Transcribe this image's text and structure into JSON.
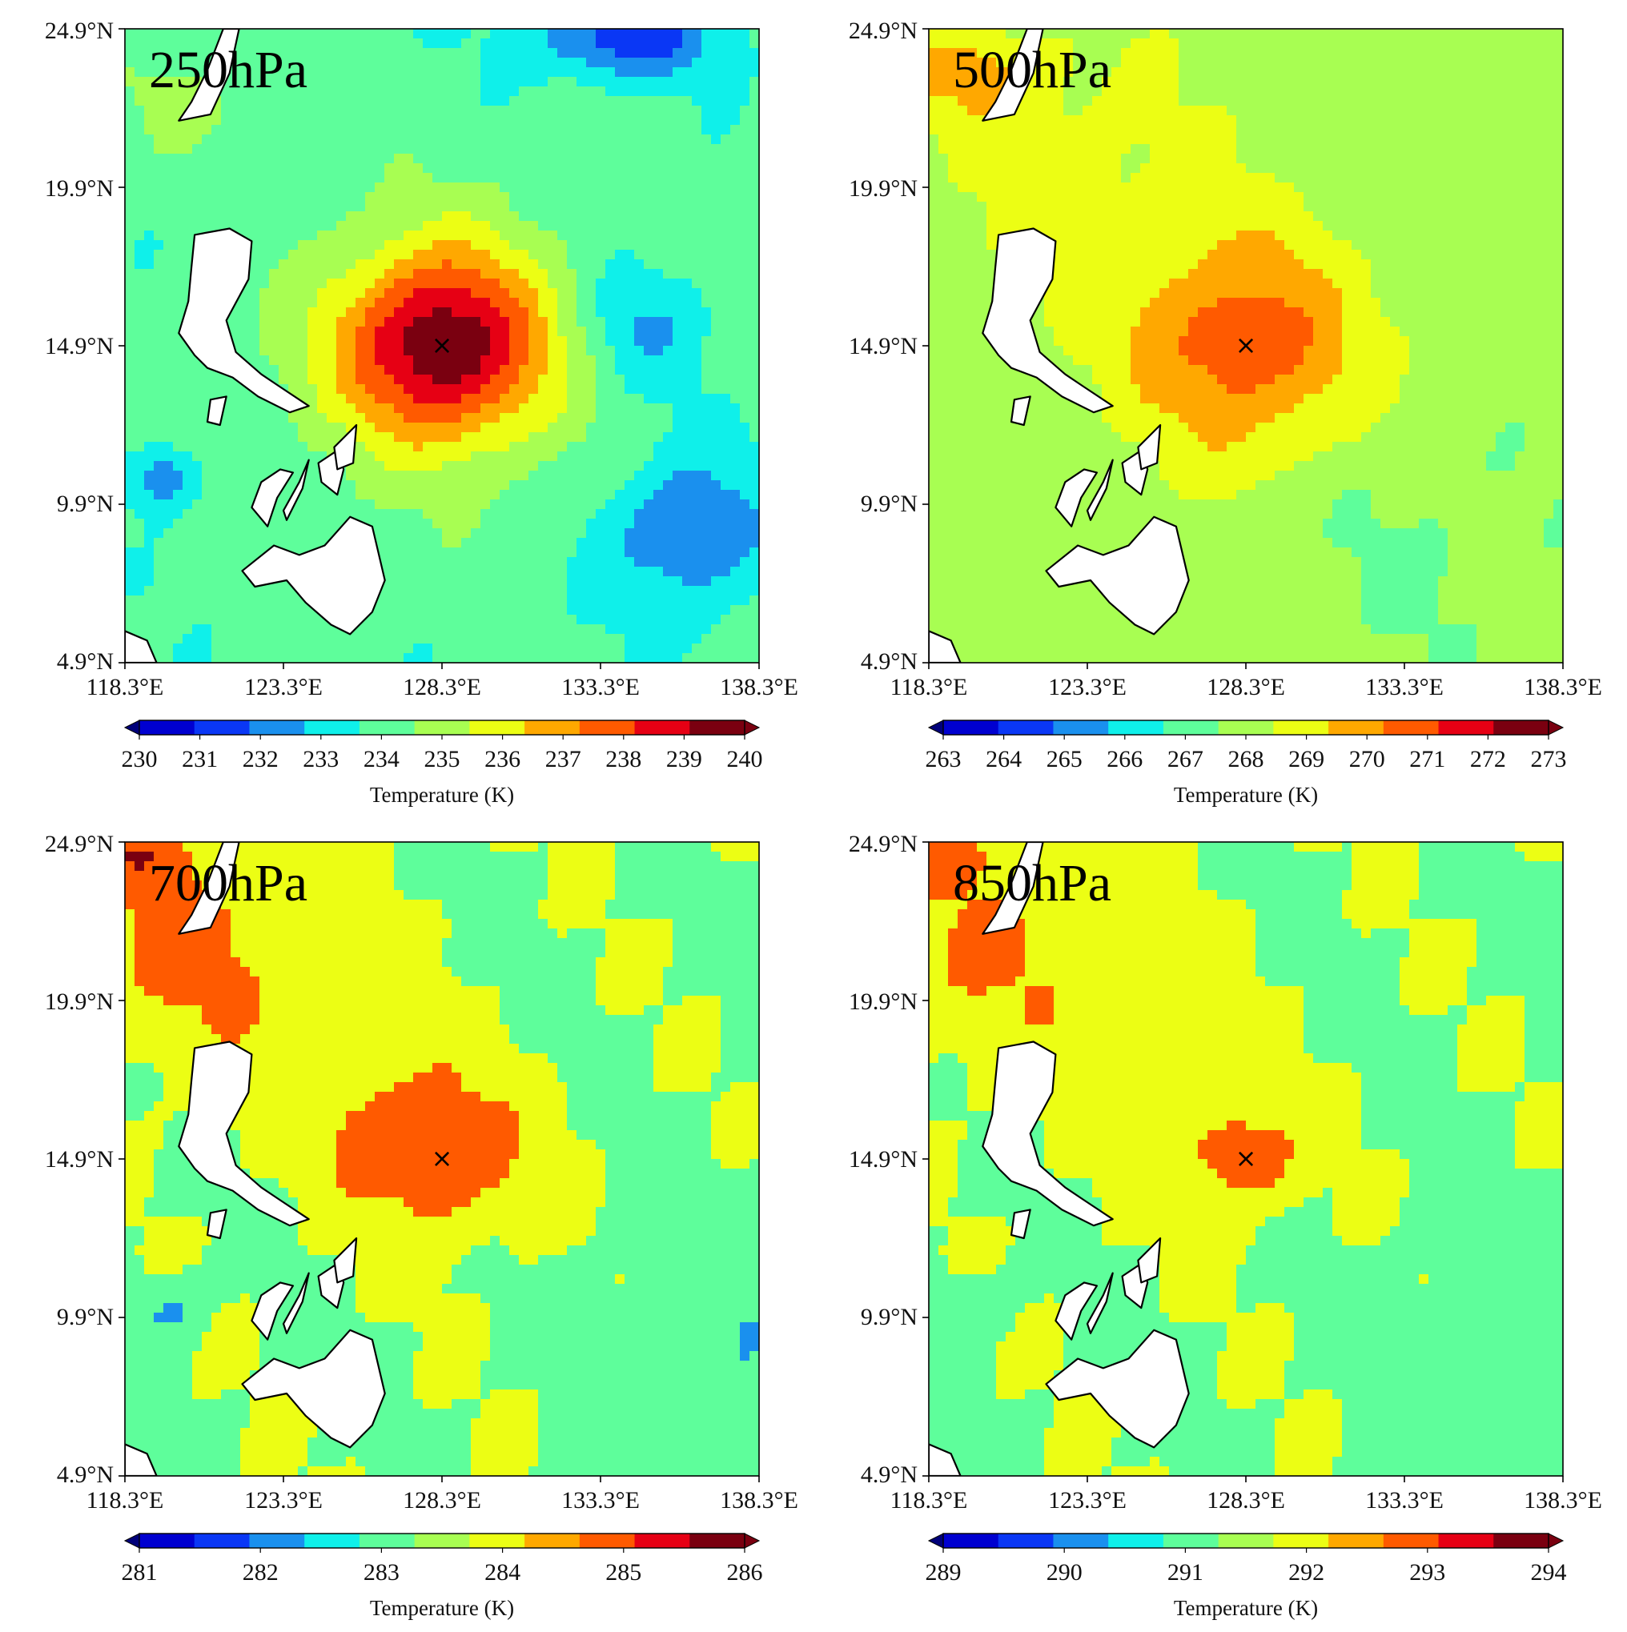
{
  "chart_data": [
    {
      "type": "heatmap",
      "title": "250hPa",
      "xticks": [
        118.3,
        123.3,
        128.3,
        133.3,
        138.3
      ],
      "yticks": [
        4.9,
        9.9,
        14.9,
        19.9,
        24.9
      ],
      "xtick_labels": [
        "118.3°E",
        "123.3°E",
        "128.3°E",
        "133.3°E",
        "138.3°E"
      ],
      "ytick_labels": [
        "4.9°N",
        "9.9°N",
        "14.9°N",
        "19.9°N",
        "24.9°N"
      ],
      "xlim": [
        118.3,
        138.3
      ],
      "ylim": [
        4.9,
        24.9
      ],
      "levels": [
        230,
        231,
        232,
        233,
        234,
        235,
        236,
        237,
        238,
        239,
        240
      ],
      "colorbar_ticks": [
        "230",
        "231",
        "232",
        "233",
        "234",
        "235",
        "236",
        "237",
        "238",
        "239",
        "240"
      ],
      "colorbar_label": "Temperature (K)",
      "center": {
        "lon": 128.3,
        "lat": 14.9,
        "marker": "×"
      },
      "background_value": 234.3,
      "anomalies": [
        {
          "lon": 128.3,
          "lat": 14.9,
          "amp": 5.6,
          "rx": 3.2,
          "ry": 3.0
        },
        {
          "lon": 128.3,
          "lat": 14.9,
          "amp": 1.1,
          "rx": 5.5,
          "ry": 5.0
        },
        {
          "lon": 136.0,
          "lat": 9.0,
          "amp": -2.3,
          "rx": 2.5,
          "ry": 2.5
        },
        {
          "lon": 134.5,
          "lat": 15.5,
          "amp": -1.6,
          "rx": 2.0,
          "ry": 2.0
        },
        {
          "lon": 134.0,
          "lat": 24.6,
          "amp": -2.8,
          "rx": 3.0,
          "ry": 1.3
        },
        {
          "lon": 119.5,
          "lat": 10.7,
          "amp": -2.2,
          "rx": 1.0,
          "ry": 1.0
        },
        {
          "lon": 120.0,
          "lat": 22.5,
          "amp": 0.8,
          "rx": 2.5,
          "ry": 1.8
        }
      ]
    },
    {
      "type": "heatmap",
      "title": "500hPa",
      "xticks": [
        118.3,
        123.3,
        128.3,
        133.3,
        138.3
      ],
      "yticks": [
        4.9,
        9.9,
        14.9,
        19.9,
        24.9
      ],
      "xtick_labels": [
        "118.3°E",
        "123.3°E",
        "128.3°E",
        "133.3°E",
        "138.3°E"
      ],
      "ytick_labels": [
        "4.9°N",
        "9.9°N",
        "14.9°N",
        "19.9°N",
        "24.9°N"
      ],
      "xlim": [
        118.3,
        138.3
      ],
      "ylim": [
        4.9,
        24.9
      ],
      "levels": [
        263,
        264,
        265,
        266,
        267,
        268,
        269,
        270,
        271,
        272,
        273
      ],
      "colorbar_ticks": [
        "263",
        "264",
        "265",
        "266",
        "267",
        "268",
        "269",
        "270",
        "271",
        "272",
        "273"
      ],
      "colorbar_label": "Temperature (K)",
      "center": {
        "lon": 128.3,
        "lat": 14.9,
        "marker": "×"
      },
      "background_value": 268.5,
      "anomalies": [
        {
          "lon": 128.3,
          "lat": 14.9,
          "amp": 3.1,
          "rx": 3.6,
          "ry": 3.4
        },
        {
          "lon": 123.0,
          "lat": 20.0,
          "amp": 0.9,
          "rx": 4.5,
          "ry": 4.5
        },
        {
          "lon": 119.5,
          "lat": 23.5,
          "amp": 1.6,
          "rx": 2.5,
          "ry": 1.5
        },
        {
          "lon": 134.0,
          "lat": 8.5,
          "amp": -0.6,
          "rx": 4.0,
          "ry": 4.0
        }
      ]
    },
    {
      "type": "heatmap",
      "title": "700hPa",
      "xticks": [
        118.3,
        123.3,
        128.3,
        133.3,
        138.3
      ],
      "yticks": [
        4.9,
        9.9,
        14.9,
        19.9,
        24.9
      ],
      "xtick_labels": [
        "118.3°E",
        "123.3°E",
        "128.3°E",
        "133.3°E",
        "138.3°E"
      ],
      "ytick_labels": [
        "4.9°N",
        "9.9°N",
        "14.9°N",
        "19.9°N",
        "24.9°N"
      ],
      "xlim": [
        118.3,
        138.3
      ],
      "ylim": [
        4.9,
        24.9
      ],
      "levels": [
        281,
        282,
        283,
        284,
        285,
        286
      ],
      "colorbar_ticks": [
        "281",
        "282",
        "283",
        "284",
        "285",
        "286"
      ],
      "colorbar_label": "Temperature (K)",
      "center": {
        "lon": 128.3,
        "lat": 14.9,
        "marker": "×"
      },
      "background_value": 283.9,
      "anomalies": [
        {
          "lon": 128.3,
          "lat": 14.9,
          "amp": 1.7,
          "rx": 2.8,
          "ry": 2.6
        },
        {
          "lon": 120.5,
          "lat": 21.5,
          "amp": 1.3,
          "rx": 4.5,
          "ry": 3.8
        },
        {
          "lon": 119.0,
          "lat": 24.5,
          "amp": 1.3,
          "rx": 1.5,
          "ry": 1.0
        },
        {
          "lon": 126.0,
          "lat": 16.5,
          "amp": 0.8,
          "rx": 3.0,
          "ry": 2.5
        },
        {
          "lon": 136.5,
          "lat": 9.0,
          "amp": -0.8,
          "rx": 3.0,
          "ry": 4.0
        },
        {
          "lon": 119.7,
          "lat": 10.2,
          "amp": -1.2,
          "rx": 1.0,
          "ry": 1.0
        }
      ]
    },
    {
      "type": "heatmap",
      "title": "850hPa",
      "xticks": [
        118.3,
        123.3,
        128.3,
        133.3,
        138.3
      ],
      "yticks": [
        4.9,
        9.9,
        14.9,
        19.9,
        24.9
      ],
      "xtick_labels": [
        "118.3°E",
        "123.3°E",
        "128.3°E",
        "133.3°E",
        "138.3°E"
      ],
      "ytick_labels": [
        "4.9°N",
        "9.9°N",
        "14.9°N",
        "19.9°N",
        "24.9°N"
      ],
      "xlim": [
        118.3,
        138.3
      ],
      "ylim": [
        4.9,
        24.9
      ],
      "levels": [
        289,
        290,
        291,
        292,
        293,
        294
      ],
      "colorbar_ticks": [
        "289",
        "290",
        "291",
        "292",
        "293",
        "294"
      ],
      "colorbar_label": "Temperature (K)",
      "center": {
        "lon": 128.3,
        "lat": 14.9,
        "marker": "×"
      },
      "background_value": 291.9,
      "anomalies": [
        {
          "lon": 128.3,
          "lat": 14.9,
          "amp": 1.5,
          "rx": 1.6,
          "ry": 1.5
        },
        {
          "lon": 120.5,
          "lat": 21.5,
          "amp": 1.1,
          "rx": 4.8,
          "ry": 3.8
        },
        {
          "lon": 119.0,
          "lat": 24.5,
          "amp": 1.0,
          "rx": 1.5,
          "ry": 1.0
        },
        {
          "lon": 126.5,
          "lat": 16.0,
          "amp": 0.6,
          "rx": 3.5,
          "ry": 3.0
        },
        {
          "lon": 136.0,
          "lat": 8.5,
          "amp": -0.7,
          "rx": 3.0,
          "ry": 4.0
        },
        {
          "lon": 119.7,
          "lat": 10.3,
          "amp": -0.9,
          "rx": 1.0,
          "ry": 1.0
        }
      ]
    }
  ],
  "colors": {
    "palette": [
      "#0000d0",
      "#0a37f5",
      "#1a90ee",
      "#0ff0ea",
      "#5efe9b",
      "#a8fe52",
      "#ecfe14",
      "#ffa800",
      "#ff5a00",
      "#e60014",
      "#7a0010"
    ],
    "land": "#ffffff",
    "coastline": "#000000"
  }
}
